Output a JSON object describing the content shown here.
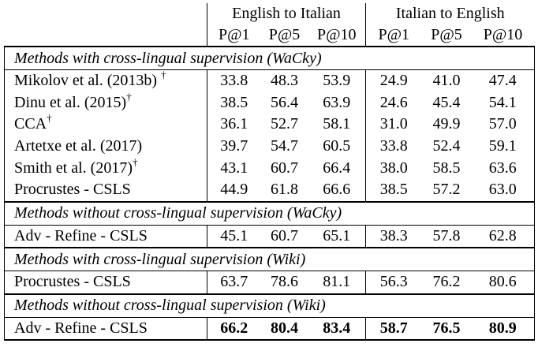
{
  "header": {
    "group_en_it": "English to Italian",
    "group_it_en": "Italian to English",
    "metrics": [
      "P@1",
      "P@5",
      "P@10",
      "P@1",
      "P@5",
      "P@10"
    ]
  },
  "sections": [
    {
      "title": "Methods with cross-lingual supervision (WaCky)",
      "rows": [
        {
          "method": "Mikolov et al. (2013b)",
          "dagger": "†",
          "values": [
            "33.8",
            "48.3",
            "53.9",
            "24.9",
            "41.0",
            "47.4"
          ]
        },
        {
          "method": "Dinu et al. (2015)",
          "dagger": "†",
          "values": [
            "38.5",
            "56.4",
            "63.9",
            "24.6",
            "45.4",
            "54.1"
          ]
        },
        {
          "method": "CCA",
          "dagger": "†",
          "values": [
            "36.1",
            "52.7",
            "58.1",
            "31.0",
            "49.9",
            "57.0"
          ]
        },
        {
          "method": "Artetxe et al. (2017)",
          "dagger": "",
          "values": [
            "39.7",
            "54.7",
            "60.5",
            "33.8",
            "52.4",
            "59.1"
          ]
        },
        {
          "method": "Smith et al. (2017)",
          "dagger": "†",
          "values": [
            "43.1",
            "60.7",
            "66.4",
            "38.0",
            "58.5",
            "63.6"
          ]
        },
        {
          "method": "Procrustes - CSLS",
          "dagger": "",
          "values": [
            "44.9",
            "61.8",
            "66.6",
            "38.5",
            "57.2",
            "63.0"
          ]
        }
      ]
    },
    {
      "title": "Methods without cross-lingual supervision (WaCky)",
      "rows": [
        {
          "method": "Adv - Refine - CSLS",
          "dagger": "",
          "values": [
            "45.1",
            "60.7",
            "65.1",
            "38.3",
            "57.8",
            "62.8"
          ]
        }
      ]
    },
    {
      "title": "Methods with cross-lingual supervision (Wiki)",
      "rows": [
        {
          "method": "Procrustes - CSLS",
          "dagger": "",
          "values": [
            "63.7",
            "78.6",
            "81.1",
            "56.3",
            "76.2",
            "80.6"
          ]
        }
      ]
    },
    {
      "title": "Methods without cross-lingual supervision (Wiki)",
      "rows": [
        {
          "method": "Adv - Refine - CSLS",
          "dagger": "",
          "bold": true,
          "values": [
            "66.2",
            "80.4",
            "83.4",
            "58.7",
            "76.5",
            "80.9"
          ]
        }
      ]
    }
  ]
}
